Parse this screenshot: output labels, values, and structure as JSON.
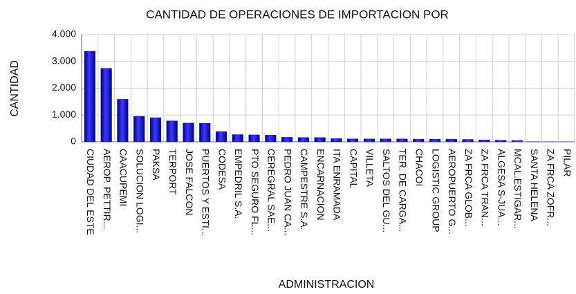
{
  "chart_data": {
    "type": "bar",
    "title": "CANTIDAD DE OPERACIONES DE IMPORTACION POR",
    "x_label": "ADMINISTRACION",
    "y_label": "CANTIDAD",
    "categories": [
      "CIUDAD DEL ESTE",
      "AEROP. PETTIR...",
      "CAACUPEMI",
      "SOLUCION LOGI...",
      "PAKSA",
      "TERPORT",
      "JOSE FALCON",
      "PUERTOS Y ESTI...",
      "CODESA",
      "EMPEDRIL S.A.",
      "PTO SEGURO FL...",
      "CEREGRAL SAE...",
      "PEDRO JUAN CA...",
      "CAMPESTRE S.A.",
      "ENCARNACION",
      "ITA ENRAMADA",
      "CAPITAL",
      "VILLETA",
      "SALTOS DEL GU...",
      "TER. DE CARGA...",
      "CHACOI",
      "LOGISTIC GROUP",
      "AEROPUERTO G...",
      "ZA FRCA GLOB...",
      "ZA FRCA TRAN...",
      "ALGESA S-JUA...",
      "MCAL.ESTIGAR...",
      "SANTA HELENA",
      "ZA FRCA ZOFR...",
      "PILAR"
    ],
    "values": [
      3380,
      2740,
      1590,
      950,
      900,
      780,
      700,
      690,
      380,
      270,
      260,
      250,
      170,
      160,
      160,
      120,
      110,
      110,
      110,
      110,
      100,
      100,
      100,
      90,
      70,
      60,
      50,
      5,
      3,
      1
    ],
    "color": "#1c1cc8",
    "ylim": [
      0,
      4000
    ],
    "yticks": [
      0,
      {
        "value": 1000,
        "label": "1.000"
      },
      {
        "value": 2000,
        "label": "2.000"
      },
      {
        "value": 3000,
        "label": "3.000"
      },
      {
        "value": 4000,
        "label": "4.000"
      }
    ],
    "grid": true
  }
}
